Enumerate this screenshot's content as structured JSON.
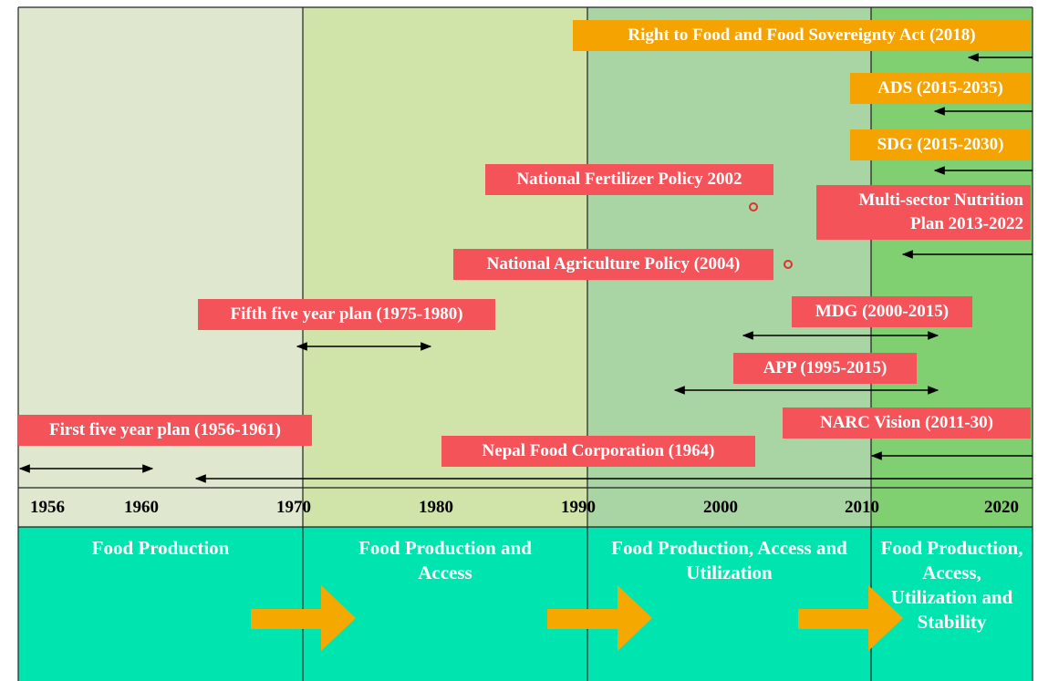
{
  "timeline": {
    "years": [
      1956,
      1960,
      1970,
      1980,
      1990,
      2000,
      2010,
      2020
    ],
    "events": [
      {
        "label": "Right to Food and Food Sovereignty Act (2018)"
      },
      {
        "label": "ADS (2015-2035)"
      },
      {
        "label": "SDG (2015-2030)"
      },
      {
        "label": "National Fertilizer Policy 2002"
      },
      {
        "label": "Multi-sector Nutrition Plan 2013-2022"
      },
      {
        "label": "National Agriculture Policy (2004)"
      },
      {
        "label": "Fifth five year plan (1975-1980)"
      },
      {
        "label": "MDG (2000-2015)"
      },
      {
        "label": "APP (1995-2015)"
      },
      {
        "label": "First five year plan (1956-1961)"
      },
      {
        "label": "NARC Vision (2011-30)"
      },
      {
        "label": "Nepal Food Corporation (1964)"
      }
    ]
  },
  "eras": [
    {
      "label": "Food Production"
    },
    {
      "label": "Food Production and Access"
    },
    {
      "label": "Food Production, Access and Utilization"
    },
    {
      "label": "Food Production, Access, Utilization and Stability"
    }
  ]
}
